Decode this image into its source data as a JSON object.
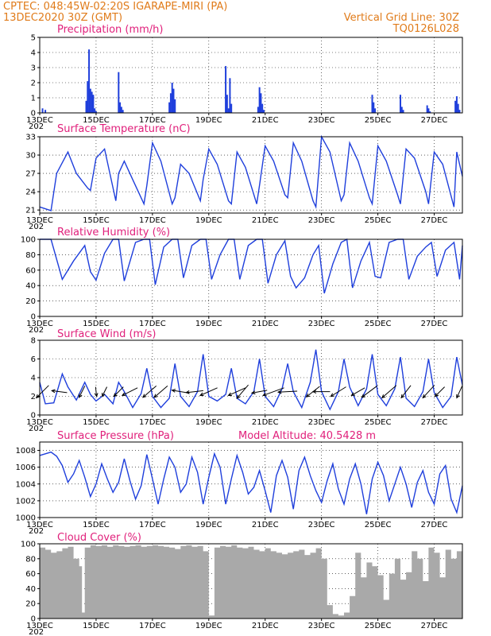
{
  "header": {
    "line1": "CPTEC:   048:45W-02:20S   IGARAPE-MIRI (PA)",
    "line2": "13DEC2020 30Z (GMT)",
    "grid_note": "Vertical Grid Line: 30Z",
    "run_id": "TQ0126L028"
  },
  "colors": {
    "header_text": "#e07b1a",
    "panel_title": "#e0207b",
    "line_series": "#1f3fdc",
    "precip_bars": "#1f3fdc",
    "cloud_fill": "#a9a9a9",
    "arrows": "#000000"
  },
  "x_axis": {
    "start_day": 13,
    "end_day": 28.0,
    "tick_labels": [
      "13DEC",
      "15DEC",
      "17DEC",
      "19DEC",
      "21DEC",
      "23DEC",
      "25DEC",
      "27DEC"
    ],
    "tick_days": [
      13,
      15,
      17,
      19,
      21,
      23,
      25,
      27
    ],
    "year_stub": "202"
  },
  "chart_data": [
    {
      "id": "precip",
      "type": "bar",
      "title": "Precipitation (mm/h)",
      "ylim": [
        0,
        5
      ],
      "yticks": [
        0,
        1,
        2,
        3,
        4,
        5
      ],
      "grid": true,
      "x": [
        13.1,
        13.2,
        14.65,
        14.7,
        14.75,
        14.8,
        14.85,
        14.9,
        14.95,
        15.0,
        15.8,
        15.85,
        15.9,
        15.95,
        17.6,
        17.65,
        17.7,
        17.75,
        17.8,
        19.6,
        19.65,
        19.7,
        19.75,
        19.8,
        20.75,
        20.8,
        20.85,
        20.9,
        20.95,
        24.8,
        24.85,
        24.9,
        25.8,
        25.85,
        25.9,
        26.75,
        26.8,
        26.85,
        27.75,
        27.8,
        27.85,
        27.9
      ],
      "values": [
        0.3,
        0.2,
        0.8,
        2.1,
        4.2,
        1.6,
        1.4,
        1.2,
        0.3,
        0.1,
        2.7,
        0.7,
        0.4,
        0.2,
        0.7,
        1.3,
        2.0,
        1.6,
        0.9,
        3.1,
        1.2,
        0.3,
        2.3,
        0.6,
        0.4,
        1.7,
        1.3,
        0.6,
        0.2,
        1.2,
        0.7,
        0.3,
        1.2,
        0.4,
        0.2,
        0.5,
        0.3,
        0.1,
        0.8,
        1.1,
        0.6,
        0.2
      ]
    },
    {
      "id": "temperature",
      "type": "line",
      "title": "Surface Temperature (nC)",
      "ylim": [
        20.5,
        33
      ],
      "yticks": [
        21,
        24,
        27,
        30,
        33
      ],
      "grid": true,
      "x": [
        13.0,
        13.4,
        13.6,
        14.0,
        14.3,
        14.7,
        14.8,
        15.0,
        15.3,
        15.7,
        15.8,
        16.0,
        16.3,
        16.7,
        16.8,
        17.0,
        17.3,
        17.7,
        17.8,
        18.0,
        18.3,
        18.7,
        18.8,
        19.0,
        19.3,
        19.7,
        19.8,
        20.0,
        20.3,
        20.7,
        20.8,
        21.0,
        21.3,
        21.7,
        21.8,
        22.0,
        22.3,
        22.7,
        22.8,
        23.0,
        23.3,
        23.7,
        23.8,
        24.0,
        24.3,
        24.7,
        24.8,
        25.0,
        25.3,
        25.7,
        25.8,
        26.0,
        26.3,
        26.7,
        26.8,
        27.0,
        27.3,
        27.7,
        27.8,
        28.0
      ],
      "values": [
        21.5,
        20.9,
        27.0,
        30.5,
        27.0,
        24.6,
        24.2,
        29.5,
        31.0,
        22.5,
        27.0,
        29.0,
        26.0,
        22.0,
        25.0,
        32.0,
        29.0,
        22.0,
        23.0,
        28.5,
        27.0,
        22.5,
        26.0,
        31.0,
        28.5,
        22.5,
        22.0,
        30.5,
        28.0,
        22.0,
        25.0,
        31.5,
        29.0,
        23.5,
        23.0,
        32.0,
        29.0,
        22.5,
        21.5,
        33.0,
        30.5,
        22.5,
        23.5,
        32.0,
        29.0,
        23.0,
        22.0,
        31.5,
        29.0,
        23.5,
        22.0,
        31.0,
        29.5,
        24.0,
        22.0,
        30.5,
        28.5,
        21.5,
        30.5,
        26.5
      ]
    },
    {
      "id": "humidity",
      "type": "line",
      "title": "Relative Humidity (%)",
      "ylim": [
        0,
        100
      ],
      "yticks": [
        0,
        20,
        40,
        60,
        80,
        100
      ],
      "grid": true,
      "x": [
        13.0,
        13.4,
        13.8,
        14.2,
        14.6,
        14.8,
        15.0,
        15.3,
        15.6,
        15.8,
        16.0,
        16.4,
        16.7,
        16.9,
        17.1,
        17.4,
        17.7,
        17.9,
        18.1,
        18.4,
        18.7,
        18.9,
        19.1,
        19.4,
        19.7,
        19.9,
        20.1,
        20.4,
        20.7,
        20.9,
        21.1,
        21.4,
        21.7,
        21.9,
        22.1,
        22.4,
        22.7,
        22.9,
        23.1,
        23.4,
        23.7,
        23.9,
        24.1,
        24.4,
        24.7,
        24.9,
        25.1,
        25.4,
        25.7,
        25.9,
        26.1,
        26.4,
        26.7,
        26.9,
        27.1,
        27.4,
        27.7,
        27.9,
        28.0
      ],
      "values": [
        100,
        100,
        48,
        72,
        92,
        58,
        47,
        82,
        100,
        100,
        46,
        96,
        100,
        100,
        41,
        90,
        100,
        100,
        50,
        92,
        100,
        100,
        48,
        80,
        100,
        100,
        48,
        92,
        100,
        100,
        43,
        80,
        98,
        52,
        37,
        50,
        80,
        92,
        30,
        68,
        96,
        100,
        37,
        72,
        96,
        52,
        50,
        96,
        100,
        100,
        48,
        78,
        90,
        96,
        52,
        86,
        96,
        48,
        92
      ]
    },
    {
      "id": "wind",
      "type": "line",
      "title": "Surface Wind (m/s)",
      "ylim": [
        0,
        8
      ],
      "yticks": [
        0,
        2,
        4,
        6,
        8
      ],
      "grid": true,
      "x": [
        13.0,
        13.2,
        13.5,
        13.8,
        14.0,
        14.3,
        14.6,
        14.8,
        15.0,
        15.3,
        15.6,
        15.8,
        16.0,
        16.3,
        16.6,
        16.8,
        17.0,
        17.3,
        17.6,
        17.8,
        18.0,
        18.3,
        18.6,
        18.8,
        19.0,
        19.3,
        19.6,
        19.8,
        20.0,
        20.3,
        20.6,
        20.8,
        21.0,
        21.3,
        21.6,
        21.8,
        22.0,
        22.3,
        22.6,
        22.8,
        23.0,
        23.3,
        23.6,
        23.8,
        24.0,
        24.3,
        24.6,
        24.8,
        25.0,
        25.3,
        25.6,
        25.8,
        26.0,
        26.3,
        26.6,
        26.8,
        27.0,
        27.3,
        27.6,
        27.8,
        28.0
      ],
      "values": [
        3.5,
        1.2,
        1.3,
        4.4,
        3.0,
        1.6,
        3.5,
        2.2,
        1.5,
        2.2,
        1.2,
        3.5,
        2.5,
        0.8,
        2.3,
        5.0,
        2.0,
        0.8,
        1.8,
        5.5,
        2.0,
        0.9,
        2.5,
        6.5,
        2.0,
        1.5,
        2.2,
        5.0,
        1.8,
        1.2,
        2.5,
        6.0,
        2.0,
        0.9,
        2.8,
        5.5,
        2.5,
        0.8,
        3.5,
        7.0,
        2.5,
        0.6,
        2.5,
        6.0,
        3.0,
        1.0,
        2.8,
        6.5,
        2.2,
        1.0,
        2.8,
        6.2,
        1.8,
        0.9,
        2.5,
        6.0,
        2.4,
        0.8,
        2.0,
        6.2,
        3.2
      ],
      "arrows": [
        {
          "day": 13.1,
          "u": -1.3,
          "v": -1.3
        },
        {
          "day": 13.7,
          "u": -1.6,
          "v": 0.2
        },
        {
          "day": 14.5,
          "u": -0.6,
          "v": -1.2
        },
        {
          "day": 15.0,
          "u": 0.1,
          "v": -1.0
        },
        {
          "day": 15.3,
          "u": -0.5,
          "v": -1.0
        },
        {
          "day": 15.8,
          "u": -1.0,
          "v": -1.0
        },
        {
          "day": 16.2,
          "u": -1.6,
          "v": -0.8
        },
        {
          "day": 16.9,
          "u": -1.4,
          "v": -1.2
        },
        {
          "day": 17.3,
          "u": -1.4,
          "v": -1.2
        },
        {
          "day": 18.0,
          "u": -1.8,
          "v": 0.3
        },
        {
          "day": 18.5,
          "u": -1.8,
          "v": -0.2
        },
        {
          "day": 19.0,
          "u": -1.8,
          "v": -0.8
        },
        {
          "day": 20.0,
          "u": -1.8,
          "v": -0.8
        },
        {
          "day": 20.2,
          "u": -1.2,
          "v": -1.4
        },
        {
          "day": 20.8,
          "u": -1.6,
          "v": -0.3
        },
        {
          "day": 21.3,
          "u": -2.2,
          "v": -0.8
        },
        {
          "day": 21.8,
          "u": -2.0,
          "v": -0.1
        },
        {
          "day": 22.7,
          "u": -1.4,
          "v": -1.1
        },
        {
          "day": 23.0,
          "u": -1.8,
          "v": 0.0
        },
        {
          "day": 23.6,
          "u": -1.6,
          "v": -1.0
        },
        {
          "day": 24.3,
          "u": -1.4,
          "v": -0.8
        },
        {
          "day": 24.7,
          "u": -1.6,
          "v": -1.2
        },
        {
          "day": 25.4,
          "u": -1.5,
          "v": -1.3
        },
        {
          "day": 26.0,
          "u": -1.0,
          "v": -1.3
        },
        {
          "day": 26.8,
          "u": -1.2,
          "v": -1.3
        },
        {
          "day": 27.2,
          "u": -1.0,
          "v": -1.0
        },
        {
          "day": 27.9,
          "u": -0.6,
          "v": -1.3
        }
      ]
    },
    {
      "id": "pressure",
      "type": "line",
      "title": "Surface Pressure (hPa)",
      "annotation": "Model Altitude: 40.5428  m",
      "ylim": [
        1000,
        1009
      ],
      "yticks": [
        1000,
        1002,
        1004,
        1006,
        1008
      ],
      "grid": true,
      "x": [
        13.0,
        13.2,
        13.4,
        13.6,
        13.8,
        14.0,
        14.2,
        14.4,
        14.6,
        14.8,
        15.0,
        15.2,
        15.4,
        15.6,
        15.8,
        16.0,
        16.2,
        16.4,
        16.6,
        16.8,
        17.0,
        17.2,
        17.4,
        17.6,
        17.8,
        18.0,
        18.2,
        18.4,
        18.6,
        18.8,
        19.0,
        19.2,
        19.4,
        19.6,
        19.8,
        20.0,
        20.2,
        20.4,
        20.6,
        20.8,
        21.0,
        21.2,
        21.4,
        21.6,
        21.8,
        22.0,
        22.2,
        22.4,
        22.6,
        22.8,
        23.0,
        23.2,
        23.4,
        23.6,
        23.8,
        24.0,
        24.2,
        24.4,
        24.6,
        24.8,
        25.0,
        25.2,
        25.4,
        25.6,
        25.8,
        26.0,
        26.2,
        26.4,
        26.6,
        26.8,
        27.0,
        27.2,
        27.4,
        27.6,
        27.8,
        28.0
      ],
      "values": [
        1007.4,
        1007.6,
        1007.8,
        1007.3,
        1006.2,
        1004.2,
        1005.2,
        1006.8,
        1004.8,
        1002.5,
        1004.0,
        1006.4,
        1004.6,
        1003.0,
        1004.2,
        1007.0,
        1004.4,
        1002.2,
        1003.8,
        1007.5,
        1004.6,
        1001.6,
        1004.6,
        1007.2,
        1006.0,
        1003.0,
        1004.0,
        1007.2,
        1005.4,
        1001.6,
        1004.8,
        1007.6,
        1006.0,
        1001.6,
        1004.6,
        1007.4,
        1005.4,
        1002.8,
        1003.6,
        1005.6,
        1003.2,
        1000.6,
        1005.0,
        1006.8,
        1004.8,
        1001.0,
        1005.6,
        1007.2,
        1005.0,
        1003.2,
        1001.8,
        1004.4,
        1006.4,
        1003.4,
        1001.6,
        1004.6,
        1006.4,
        1004.0,
        1000.4,
        1004.6,
        1006.6,
        1005.0,
        1002.0,
        1004.0,
        1006.0,
        1004.0,
        1001.2,
        1004.2,
        1005.6,
        1003.0,
        1001.6,
        1005.2,
        1006.2,
        1002.2,
        1000.6,
        1003.8
      ]
    },
    {
      "id": "cloud",
      "type": "area",
      "title": "Cloud Cover (%)",
      "ylim": [
        0,
        100
      ],
      "yticks": [
        0,
        20,
        40,
        60,
        80,
        100
      ],
      "grid": true,
      "x": [
        13.0,
        13.2,
        13.4,
        13.6,
        13.8,
        14.0,
        14.2,
        14.4,
        14.5,
        14.6,
        14.8,
        15.0,
        15.2,
        15.4,
        15.6,
        15.8,
        16.0,
        16.2,
        16.4,
        16.6,
        16.8,
        17.0,
        17.2,
        17.4,
        17.6,
        17.8,
        18.0,
        18.2,
        18.4,
        18.6,
        18.8,
        19.0,
        19.2,
        19.4,
        19.6,
        19.8,
        20.0,
        20.2,
        20.4,
        20.6,
        20.8,
        21.0,
        21.2,
        21.4,
        21.6,
        21.8,
        22.0,
        22.2,
        22.4,
        22.6,
        22.8,
        23.0,
        23.2,
        23.4,
        23.6,
        23.8,
        24.0,
        24.2,
        24.4,
        24.6,
        24.8,
        25.0,
        25.2,
        25.4,
        25.6,
        25.8,
        26.0,
        26.2,
        26.4,
        26.6,
        26.8,
        27.0,
        27.2,
        27.4,
        27.6,
        27.8,
        28.0
      ],
      "values": [
        95,
        92,
        88,
        90,
        94,
        96,
        80,
        70,
        8,
        95,
        98,
        97,
        98,
        96,
        98,
        97,
        96,
        97,
        98,
        96,
        97,
        98,
        97,
        96,
        95,
        93,
        97,
        98,
        96,
        97,
        90,
        4,
        95,
        97,
        96,
        98,
        95,
        94,
        96,
        92,
        90,
        94,
        90,
        88,
        86,
        88,
        90,
        92,
        85,
        88,
        94,
        80,
        18,
        6,
        4,
        8,
        30,
        88,
        55,
        75,
        70,
        58,
        25,
        60,
        80,
        52,
        62,
        90,
        80,
        50,
        95,
        88,
        55,
        92,
        80,
        90,
        98
      ]
    }
  ]
}
